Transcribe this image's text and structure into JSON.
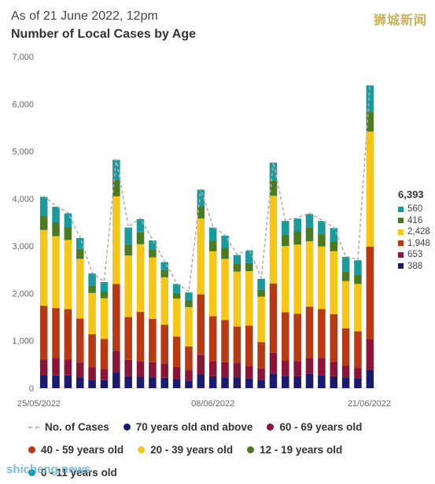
{
  "header": {
    "subtitle": "As of 21 June 2022, 12pm",
    "title": "Number of Local Cases by Age",
    "watermark_top": "狮城新闻",
    "watermark_bottom": "shicheng.news"
  },
  "colors": {
    "age_0_11": "#1b9a9e",
    "age_12_19": "#4a7c1f",
    "age_20_39": "#f5c518",
    "age_40_59": "#b83a14",
    "age_60_69": "#8b1538",
    "age_70_plus": "#1a1a6e",
    "total_line": "#b0b0b0"
  },
  "side_legend": {
    "total": "6,393",
    "items": [
      {
        "value": "560",
        "color": "#1b9a9e"
      },
      {
        "value": "416",
        "color": "#4a7c1f"
      },
      {
        "value": "2,428",
        "color": "#f5c518"
      },
      {
        "value": "1,948",
        "color": "#b83a14"
      },
      {
        "value": "653",
        "color": "#8b1538"
      },
      {
        "value": "388",
        "color": "#1a1a6e"
      }
    ]
  },
  "legend": {
    "total": "No. of Cases",
    "age_70_plus": "70 years old and above",
    "age_60_69": "60 - 69 years old",
    "age_40_59": "40 - 59 years old",
    "age_20_39": "20 - 39 years old",
    "age_12_19": "12 - 19 years old",
    "age_0_11": "0 - 11 years old"
  },
  "chart_data": {
    "type": "bar",
    "stacked": true,
    "x_tick_labels": [
      "25/05/2022",
      "08/06/2022",
      "21/06/2022"
    ],
    "x_tick_indices": [
      0,
      14,
      27
    ],
    "yticks": [
      "0",
      "1,000",
      "2,000",
      "3,000",
      "4,000",
      "5,000",
      "6,000",
      "7,000"
    ],
    "ylim": [
      0,
      7000
    ],
    "grid": false,
    "total_line": "dashed",
    "series": [
      {
        "name": "70 years old and above",
        "key": "age_70_plus",
        "values": [
          280,
          270,
          270,
          230,
          180,
          170,
          330,
          250,
          240,
          230,
          220,
          190,
          160,
          290,
          250,
          230,
          230,
          200,
          180,
          300,
          260,
          250,
          300,
          270,
          250,
          230,
          200,
          388
        ]
      },
      {
        "name": "60 - 69 years old",
        "key": "age_60_69",
        "values": [
          330,
          370,
          340,
          310,
          260,
          240,
          460,
          350,
          330,
          320,
          300,
          260,
          220,
          410,
          320,
          320,
          300,
          270,
          240,
          450,
          320,
          320,
          340,
          360,
          310,
          250,
          230,
          653
        ]
      },
      {
        "name": "40 - 59 years old",
        "key": "age_40_59",
        "values": [
          1130,
          1050,
          1060,
          930,
          700,
          630,
          1410,
          900,
          1040,
          910,
          820,
          640,
          500,
          1280,
          950,
          890,
          770,
          850,
          550,
          1460,
          1020,
          1000,
          1080,
          1040,
          1000,
          780,
          770,
          1948
        ]
      },
      {
        "name": "20 - 39 years old",
        "key": "age_20_39",
        "values": [
          1600,
          1520,
          1460,
          1260,
          870,
          860,
          1850,
          1300,
          1430,
          1300,
          1000,
          800,
          830,
          1600,
          1370,
          1290,
          1160,
          1150,
          960,
          1850,
          1400,
          1460,
          1380,
          1320,
          1330,
          1000,
          1000,
          2428
        ]
      },
      {
        "name": "12 - 19 years old",
        "key": "age_12_19",
        "values": [
          300,
          290,
          270,
          210,
          150,
          140,
          350,
          230,
          250,
          170,
          150,
          120,
          140,
          260,
          220,
          230,
          170,
          170,
          150,
          330,
          240,
          280,
          290,
          260,
          210,
          200,
          200,
          416
        ]
      },
      {
        "name": "0 - 11 years old",
        "key": "age_0_11",
        "values": [
          400,
          330,
          290,
          230,
          260,
          200,
          420,
          360,
          280,
          190,
          170,
          190,
          170,
          350,
          280,
          260,
          180,
          270,
          230,
          370,
          290,
          270,
          290,
          280,
          280,
          310,
          300,
          560
        ]
      }
    ]
  }
}
